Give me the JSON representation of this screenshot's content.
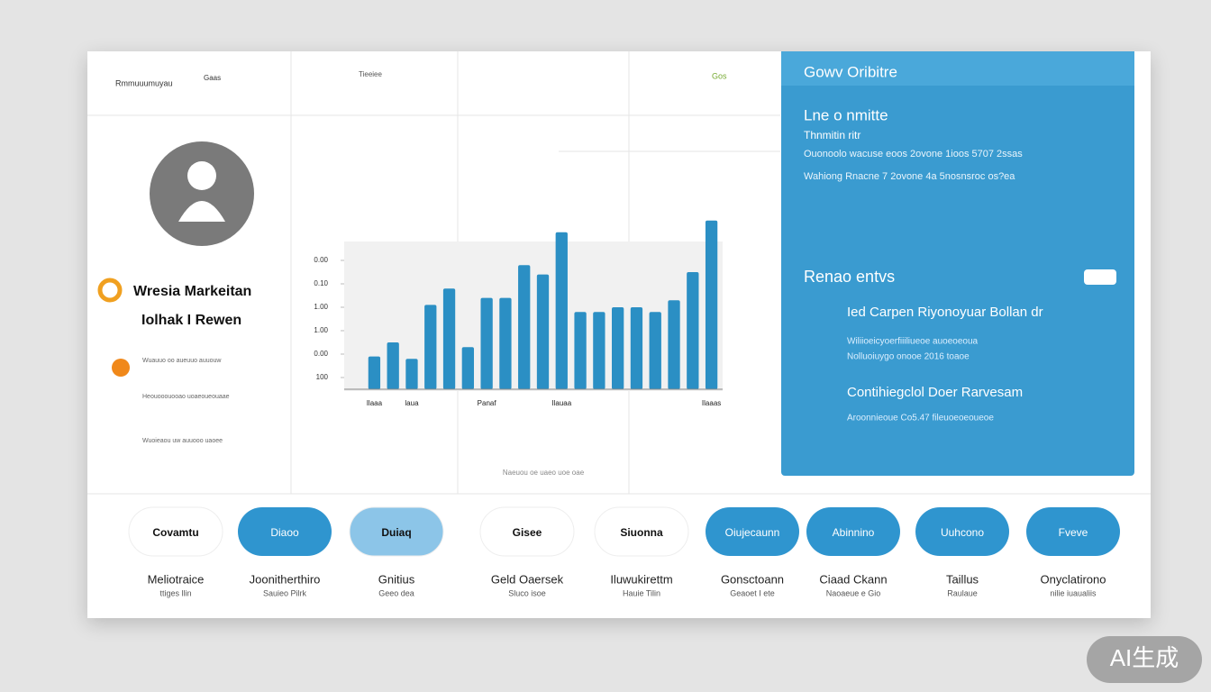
{
  "header": {
    "brand": "Rmmuuumuyau",
    "tag": "Gaas",
    "links": [
      "Tieeiee",
      "Gos"
    ]
  },
  "profile": {
    "name": "Wresia Markeitan",
    "subtitle": "Iolhak I Rewen",
    "notes": [
      "Wuauuo oo aueuuo auuouw",
      "Heouooouooao uoaeoueouaae",
      "Wuoieaou uw auuooo uaoee"
    ]
  },
  "chart_data": {
    "type": "bar",
    "color": "#2b8fc4",
    "values": [
      1.4,
      2.0,
      1.3,
      3.6,
      4.3,
      1.8,
      3.9,
      3.9,
      5.3,
      4.9,
      6.7,
      3.3,
      3.3,
      3.5,
      3.5,
      3.3,
      3.8,
      5.0,
      7.2
    ],
    "ylim": [
      0,
      7.5
    ],
    "yticks": [
      {
        "value": 0.5,
        "label": "100"
      },
      {
        "value": 1.5,
        "label": "0.00"
      },
      {
        "value": 2.5,
        "label": "1.00"
      },
      {
        "value": 3.5,
        "label": "1.00"
      },
      {
        "value": 4.5,
        "label": "0.10"
      },
      {
        "value": 5.5,
        "label": "0.00"
      }
    ],
    "categories": [
      "Ilaaa",
      null,
      "laua",
      null,
      null,
      null,
      "Panaf",
      null,
      null,
      null,
      "Ilauaa",
      null,
      null,
      null,
      null,
      null,
      null,
      null,
      "Ilaaas"
    ],
    "footnote": "Naeuou oe uaeo uoe oae"
  },
  "panel": {
    "title": "Gowv Oribitre",
    "heading": "Lne o nmitte",
    "subheading": "Thnmitin ritr",
    "lines": [
      "Ouonoolo wacuse eoos 2ovone 1ioos 5707 2ssas",
      "Wahiong Rnacne 7 2ovone 4a 5nosnsroc os?ea"
    ],
    "section": "Renao entvs",
    "items": [
      {
        "title": "Ied Carpen Riyonoyuar Bollan dr",
        "desc": [
          "Wiliioeicyoerfiiiliueoe auoeoeoua",
          "Nolluoiuygo onooe 2016 toaoe"
        ]
      },
      {
        "title": "Contihiegclol Doer Rarvesam",
        "desc": [
          "Aroonnieoue Co5.47 fileuoeoeoueoe"
        ]
      }
    ]
  },
  "bottom": [
    {
      "pill": "Covamtu",
      "label": "Meliotraice",
      "sub": "ttiges llin"
    },
    {
      "pill": "Diaoo",
      "label": "Joonitherthiro",
      "sub": "Sauieo Pilrk"
    },
    {
      "pill": "Duiaq",
      "label": "Gnitius",
      "sub": "Geeo dea"
    },
    {
      "pill": "Gisee",
      "label": "Geld Oaersek",
      "sub": "Sluco isoe"
    },
    {
      "pill": "Siuonna",
      "label": "Iluwukirettm",
      "sub": "Hauie Tilin"
    },
    {
      "pill": "Oiujecaunn",
      "label": "Gonsctoann",
      "sub": "Geaoet I ete"
    },
    {
      "pill": "Abinnino",
      "label": "Ciaad Ckann",
      "sub": "Naoaeue e Gio"
    },
    {
      "pill": "Uuhcono",
      "label": "Taillus",
      "sub": "Raulaue"
    },
    {
      "pill": "Fveve",
      "label": "Onyclatirono",
      "sub": "nilie iuaualiis"
    }
  ],
  "watermark": "AI生成"
}
